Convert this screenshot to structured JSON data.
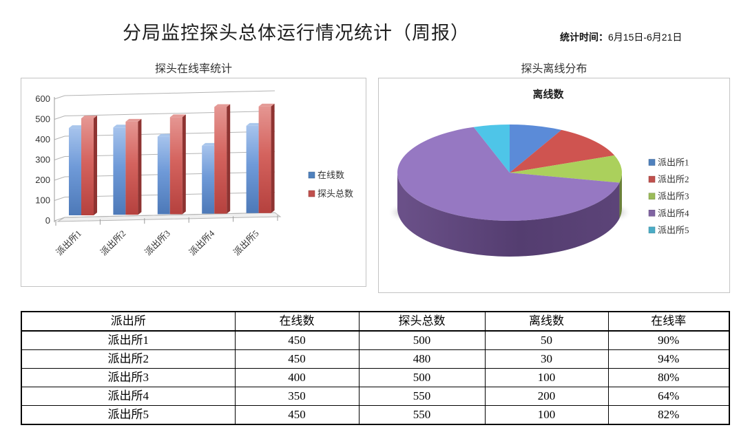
{
  "page": {
    "title": "分局监控探头总体运行情况统计（周报）",
    "stat_time_label": "统计时间：",
    "stat_time_value": "6月15日-6月21日"
  },
  "chart_data": [
    {
      "type": "bar",
      "title": "探头在线率统计",
      "categories": [
        "派出所1",
        "派出所2",
        "派出所3",
        "派出所4",
        "派出所5"
      ],
      "series": [
        {
          "name": "在线数",
          "values": [
            450,
            450,
            400,
            350,
            450
          ],
          "color": "#6f9ad8",
          "legend_color": "#4f81bd"
        },
        {
          "name": "探头总数",
          "values": [
            500,
            480,
            500,
            550,
            550
          ],
          "color": "#cd5450",
          "legend_color": "#c0504d"
        }
      ],
      "ylim": [
        0,
        600
      ],
      "yticks": [
        0,
        100,
        200,
        300,
        400,
        500,
        600
      ],
      "grid": true,
      "legend_position": "right",
      "style": "3d-column"
    },
    {
      "type": "pie",
      "section_title": "探头离线分布",
      "title": "离线数",
      "categories": [
        "派出所1",
        "派出所2",
        "派出所3",
        "派出所4",
        "派出所5"
      ],
      "values": [
        50,
        30,
        100,
        200,
        100
      ],
      "colors": [
        "#5b8bd8",
        "#cf5450",
        "#abd05c",
        "#9678c2",
        "#4ec5e8"
      ],
      "legend_colors": [
        "#4f81bd",
        "#c0504d",
        "#9bbb59",
        "#8064a2",
        "#4bacc6"
      ],
      "legend_position": "right",
      "style": "3d-pie",
      "display_angles": [
        [
          0,
          27.5
        ],
        [
          27.5,
          69
        ],
        [
          69,
          102
        ],
        [
          102,
          341.3
        ],
        [
          341.3,
          360
        ]
      ]
    }
  ],
  "table": {
    "headers": [
      "派出所",
      "在线数",
      "探头总数",
      "离线数",
      "在线率"
    ],
    "rows": [
      [
        "派出所1",
        "450",
        "500",
        "50",
        "90%"
      ],
      [
        "派出所2",
        "450",
        "480",
        "30",
        "94%"
      ],
      [
        "派出所3",
        "400",
        "500",
        "100",
        "80%"
      ],
      [
        "派出所4",
        "350",
        "550",
        "200",
        "64%"
      ],
      [
        "派出所5",
        "450",
        "550",
        "100",
        "82%"
      ]
    ]
  }
}
